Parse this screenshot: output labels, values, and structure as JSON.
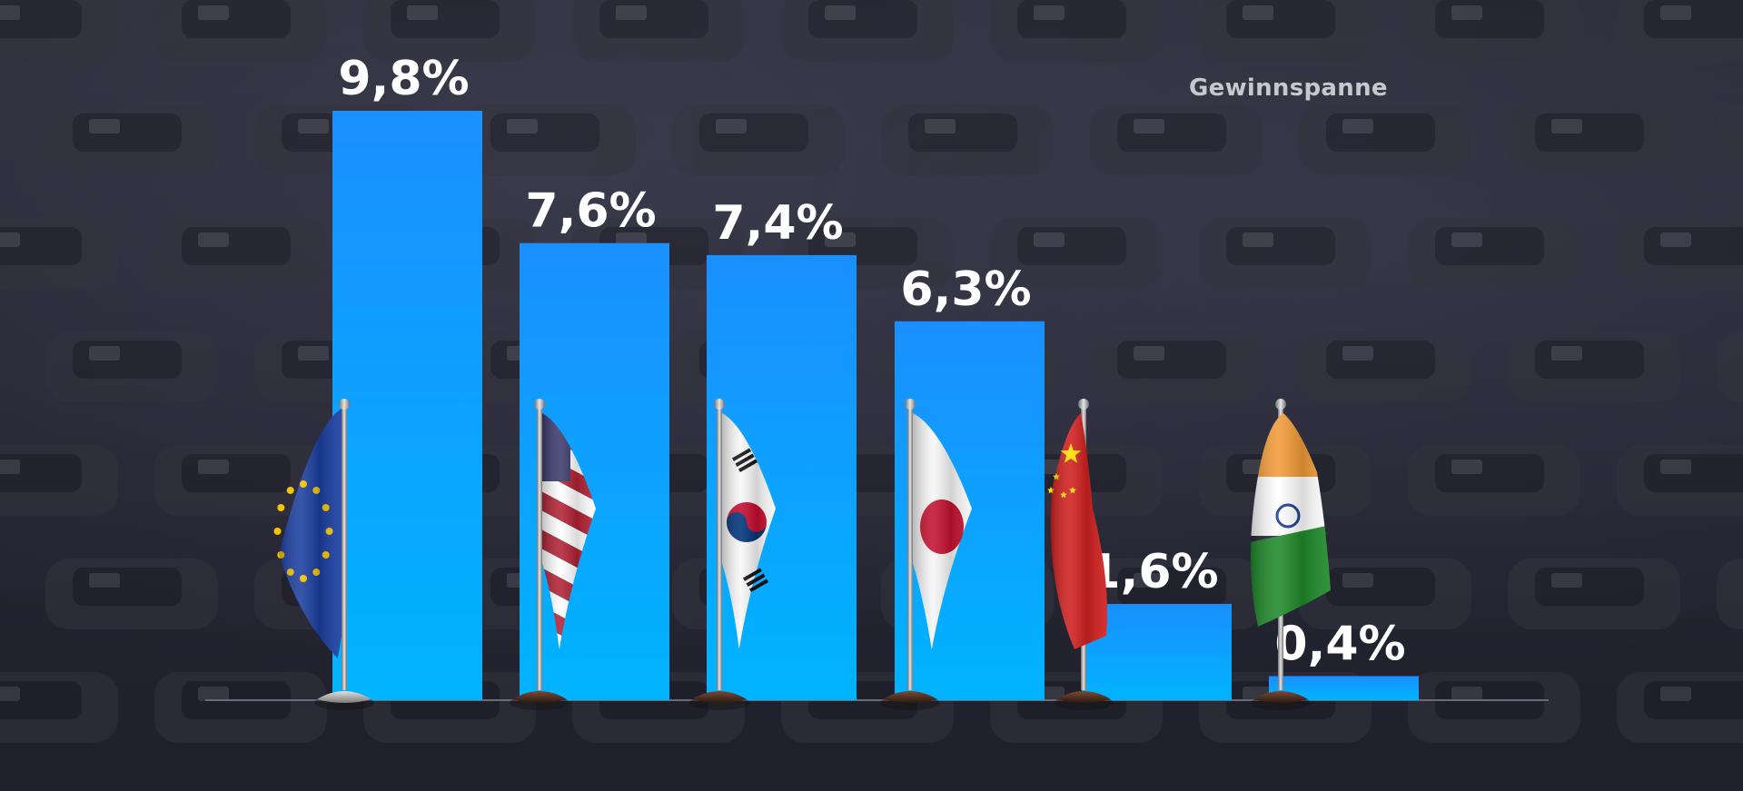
{
  "chart_data": {
    "type": "bar",
    "series_label": "Gewinnspanne",
    "categories": [
      "EU",
      "USA",
      "South Korea",
      "Japan",
      "China",
      "India"
    ],
    "values": [
      9.8,
      7.6,
      7.4,
      6.3,
      1.6,
      0.4
    ],
    "value_labels": [
      "9,8%",
      "7,6%",
      "7,4%",
      "6,3%",
      "1,6%",
      "0,4%"
    ],
    "category_icons": [
      "eu-flag-icon",
      "usa-flag-icon",
      "south-korea-flag-icon",
      "japan-flag-icon",
      "china-flag-icon",
      "india-flag-icon"
    ],
    "ylim": [
      0,
      10.5
    ],
    "grid": false,
    "legend_position": "top-right",
    "title": "",
    "xlabel": "",
    "ylabel": ""
  },
  "colors": {
    "bar_top": "#1a8fff",
    "bar_bottom": "#00b4ff",
    "label": "#ffffff",
    "baseline": "#6a6a78",
    "legend_text": "#c8c8cc"
  }
}
